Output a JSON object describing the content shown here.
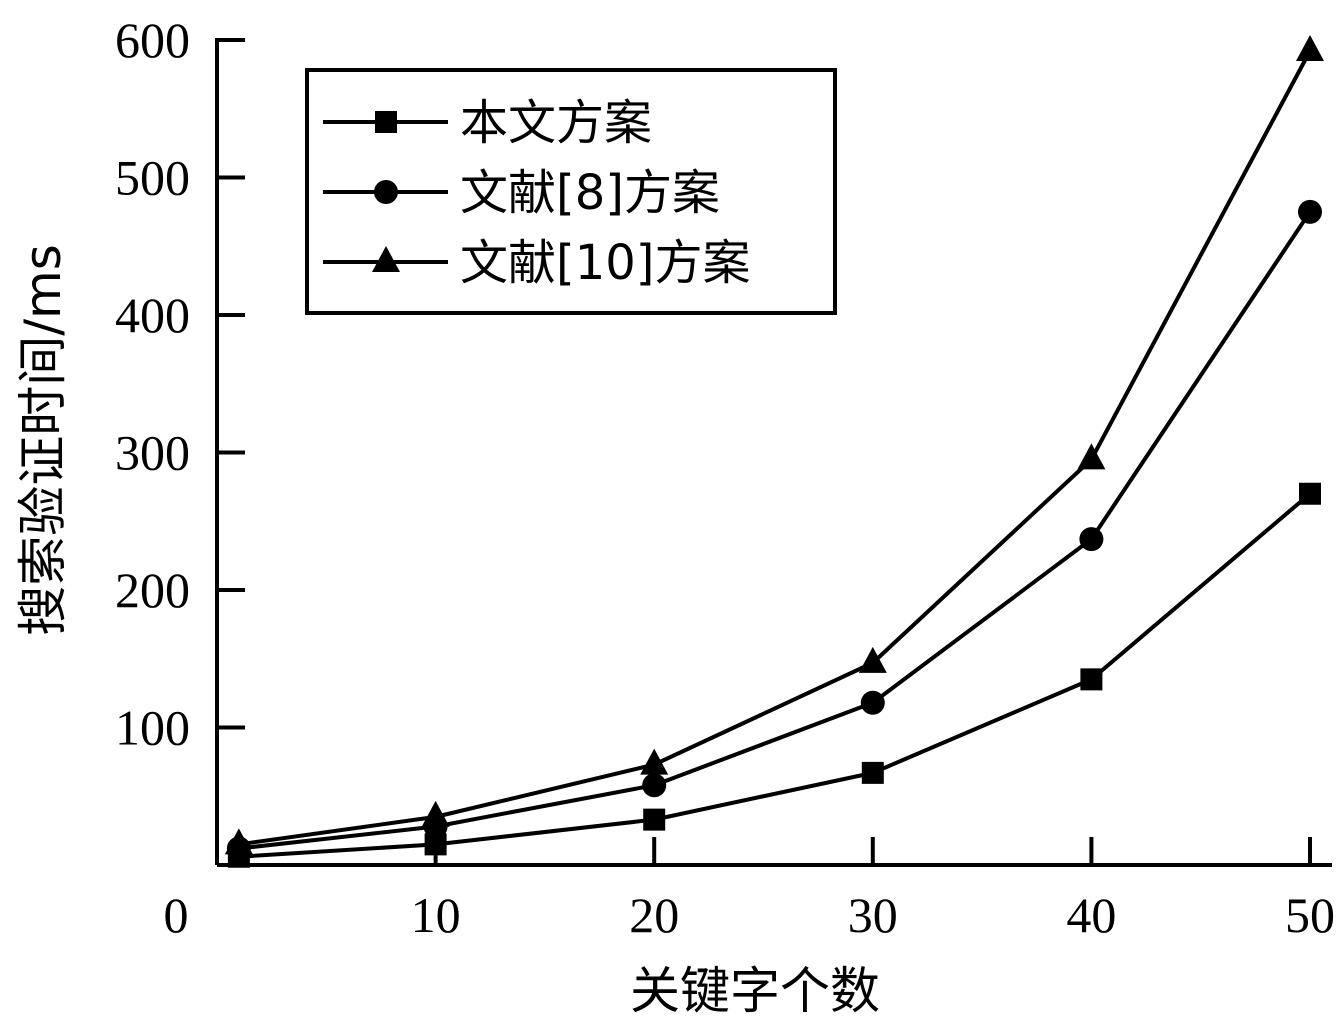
{
  "chart_data": {
    "type": "line",
    "xlabel": "关键字个数",
    "ylabel": "搜索验证时间/ms",
    "xlim": [
      0,
      50
    ],
    "ylim": [
      0,
      600
    ],
    "x_ticks": [
      10,
      20,
      30,
      40,
      50
    ],
    "x_origin_label": "0",
    "y_ticks": [
      100,
      200,
      300,
      400,
      500,
      600
    ],
    "grid": false,
    "legend_position": "top-left",
    "series": [
      {
        "name": "本文方案",
        "marker": "square",
        "color": "#000000",
        "x": [
          1,
          10,
          20,
          30,
          40,
          50
        ],
        "y": [
          6,
          15,
          33,
          67,
          135,
          270
        ]
      },
      {
        "name": "文献[8]方案",
        "marker": "circle",
        "color": "#000000",
        "x": [
          1,
          10,
          20,
          30,
          40,
          50
        ],
        "y": [
          12,
          28,
          58,
          118,
          237,
          475
        ]
      },
      {
        "name": "文献[10]方案",
        "marker": "triangle",
        "color": "#000000",
        "x": [
          1,
          10,
          20,
          30,
          40,
          50
        ],
        "y": [
          15,
          35,
          73,
          147,
          295,
          592
        ]
      }
    ]
  }
}
